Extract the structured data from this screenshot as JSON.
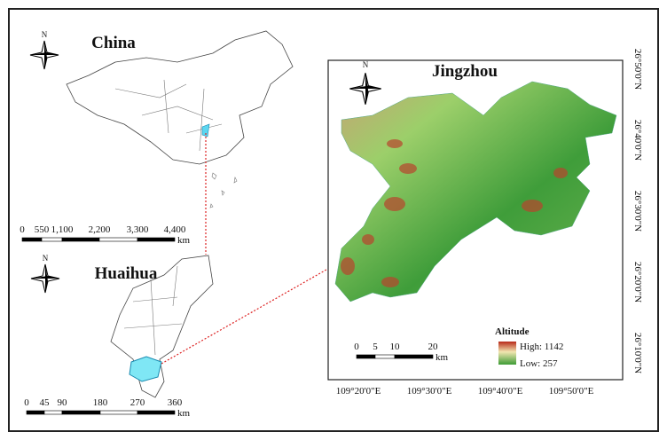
{
  "china": {
    "title": "China",
    "north": "N",
    "scale": [
      "0",
      "550",
      "1,100",
      "2,200",
      "3,300",
      "4,400"
    ],
    "unit": "km"
  },
  "huaihua": {
    "title": "Huaihua",
    "north": "N",
    "scale": [
      "0",
      "45",
      "90",
      "180",
      "270",
      "360"
    ],
    "unit": "km"
  },
  "jingzhou": {
    "title": "Jingzhou",
    "north": "N",
    "scale": [
      "0",
      "5",
      "10",
      "20"
    ],
    "unit": "km",
    "legend": {
      "title": "Altitude",
      "high": "High: 1142",
      "low": "Low: 257"
    },
    "lat_labels": [
      "26°50'0\"N",
      "26°40'0\"N",
      "26°30'0\"N",
      "26°20'0\"N",
      "26°10'0\"N"
    ],
    "lon_labels": [
      "109°20'0\"E",
      "109°30'0\"E",
      "109°40'0\"E",
      "109°50'0\"E"
    ]
  }
}
